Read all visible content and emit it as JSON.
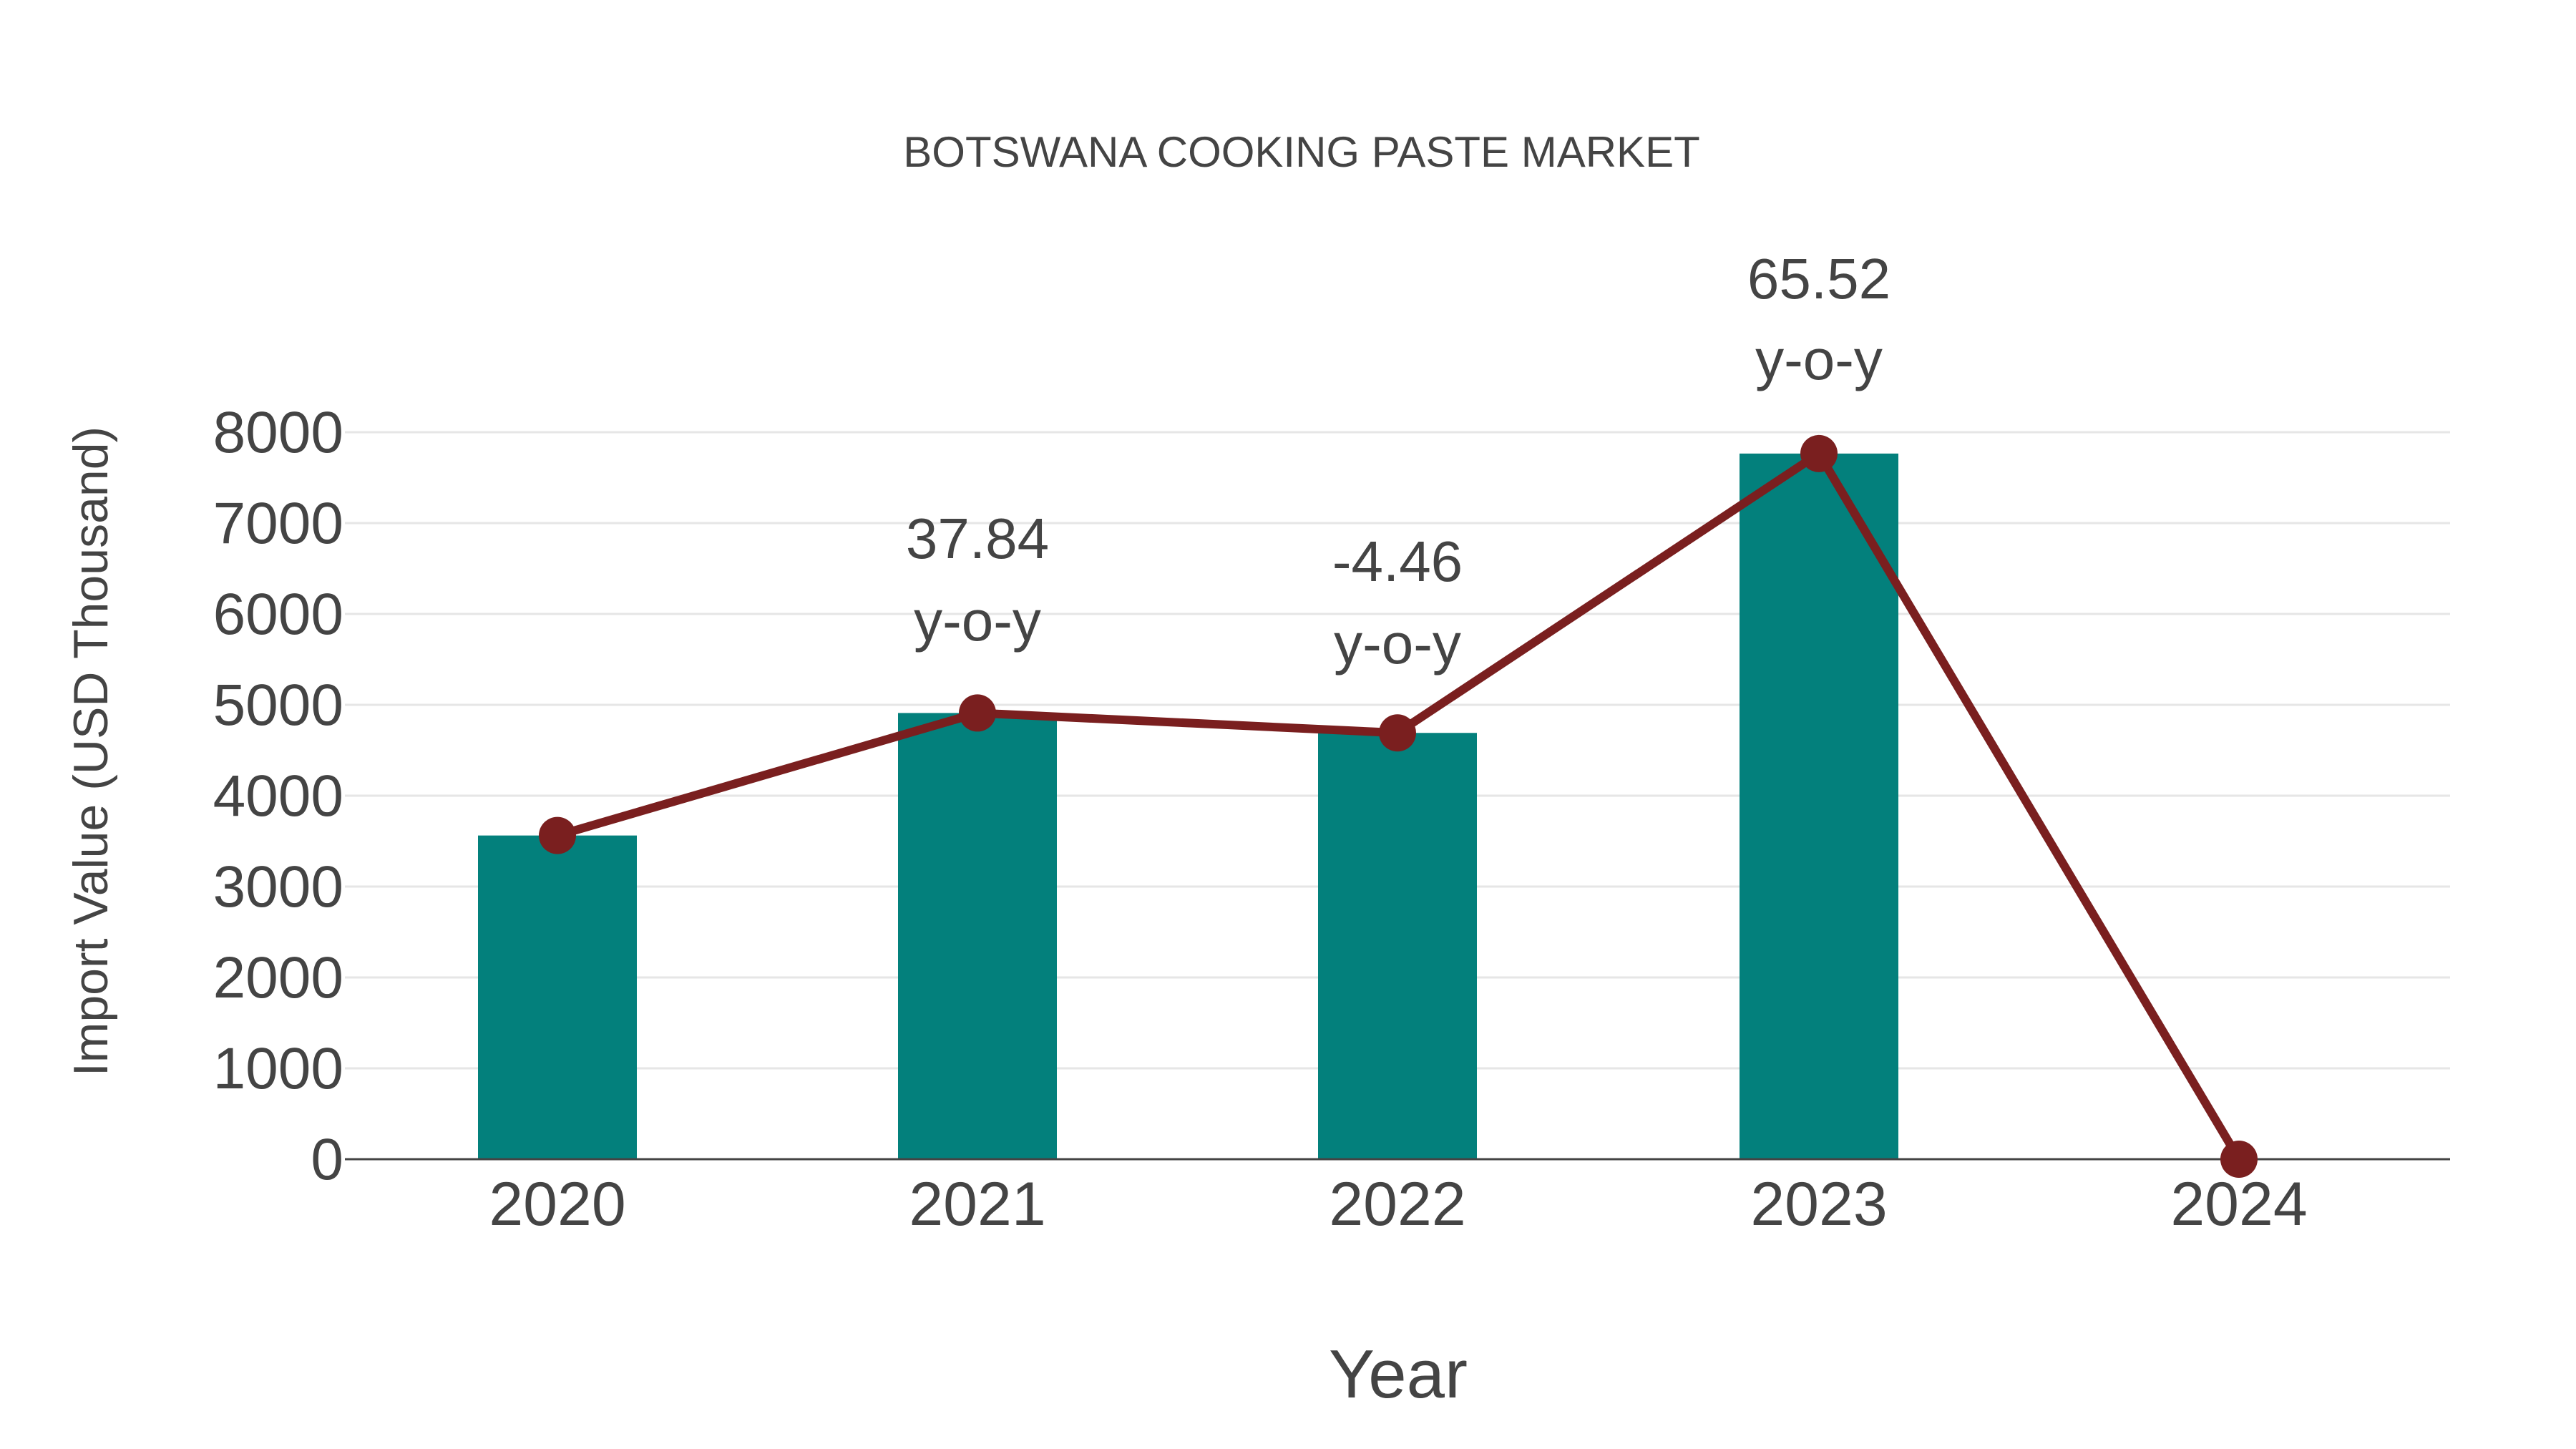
{
  "chart_data": {
    "type": "bar",
    "title": "BOTSWANA COOKING PASTE MARKET",
    "xlabel": "Year",
    "ylabel": "Import Value (USD Thousand)",
    "categories": [
      "2020",
      "2021",
      "2022",
      "2023",
      "2024"
    ],
    "series": [
      {
        "name": "Import Value (bar)",
        "type": "bar",
        "color": "#03807c",
        "values": [
          3562,
          4910,
          4691,
          7765,
          0
        ]
      },
      {
        "name": "Import Value (line)",
        "type": "line",
        "color": "#7a1f1f",
        "values": [
          3562,
          4910,
          4691,
          7765,
          0
        ]
      }
    ],
    "annotations": [
      {
        "category": "2021",
        "value": "37.84",
        "suffix": "y-o-y"
      },
      {
        "category": "2022",
        "value": "-4.46",
        "suffix": "y-o-y"
      },
      {
        "category": "2023",
        "value": "65.52",
        "suffix": "y-o-y"
      }
    ],
    "yticks": [
      "0",
      "1000",
      "2000",
      "3000",
      "4000",
      "5000",
      "6000",
      "7000",
      "8000"
    ],
    "ylim": [
      0,
      8000
    ],
    "grid": true,
    "legend": "none"
  }
}
